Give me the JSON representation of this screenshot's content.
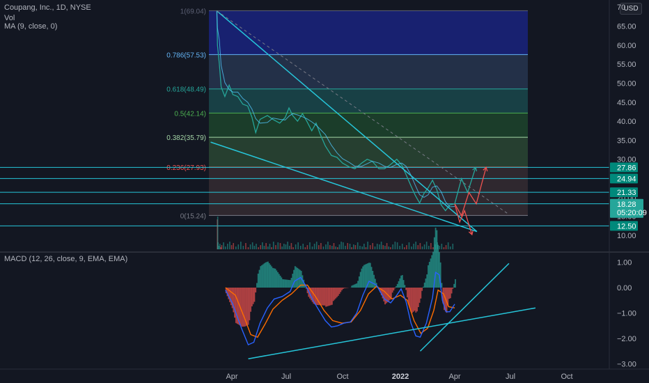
{
  "symbol_line": "Coupang, Inc., 1D, NYSE",
  "indicators": {
    "vol_label": "Vol",
    "ma_label": "MA (9, close, 0)",
    "macd_label": "MACD (12, 26, close, 9, EMA, EMA)"
  },
  "currency": "USD",
  "colors": {
    "background": "#131722",
    "trendline": "#26c6da",
    "up": "#26a69a",
    "down": "#ef5350",
    "macd_line": "#2962ff",
    "signal_line": "#ff6d00"
  },
  "chart_data": [
    {
      "type": "line",
      "title": "Coupang, Inc., 1D, NYSE",
      "y_axis": {
        "ticks": [
          "70",
          "65.00",
          "60.00",
          "55.00",
          "50.00",
          "45.00",
          "40.00",
          "35.00",
          "30.00",
          "25.00",
          "20.00",
          "15.00",
          "10.00"
        ],
        "range": [
          8,
          70
        ]
      },
      "x_axis": {
        "ticks": [
          "Apr",
          "Jul",
          "Oct",
          "2022",
          "Apr",
          "Jul",
          "Oct"
        ]
      },
      "fibonacci": [
        {
          "label": "1(69.04)",
          "value": 69.04,
          "color": "#5d6175"
        },
        {
          "label": "0.786(57.53)",
          "value": 57.53,
          "color": "#64b5f6"
        },
        {
          "label": "0.618(48.49)",
          "value": 48.49,
          "color": "#26a69a"
        },
        {
          "label": "0.5(42.14)",
          "value": 42.14,
          "color": "#4caf50"
        },
        {
          "label": "0.382(35.79)",
          "value": 35.79,
          "color": "#a5d6a7"
        },
        {
          "label": "0.236(27.93)",
          "value": 27.93,
          "color": "#ef5350"
        },
        {
          "label": "0(15.24)",
          "value": 15.24,
          "color": "#787b86"
        }
      ],
      "price_labels": [
        {
          "text": "27.86",
          "value": 27.86
        },
        {
          "text": "24.94",
          "value": 24.94
        },
        {
          "text": "21.33",
          "value": 21.33
        },
        {
          "text": "18.30",
          "value": 18.3
        },
        {
          "text": "12.50",
          "value": 12.5
        }
      ],
      "last_price": {
        "price": "18.28",
        "countdown": "05:20:09",
        "value": 18.28
      },
      "price_series": [
        [
          "2021-03-11",
          69.0
        ],
        [
          "2021-03-12",
          60.0
        ],
        [
          "2021-03-15",
          55.0
        ],
        [
          "2021-03-18",
          49.0
        ],
        [
          "2021-03-24",
          46.5
        ],
        [
          "2021-03-31",
          49.5
        ],
        [
          "2021-04-06",
          47.0
        ],
        [
          "2021-04-14",
          46.5
        ],
        [
          "2021-04-22",
          44.5
        ],
        [
          "2021-04-30",
          44.0
        ],
        [
          "2021-05-07",
          41.0
        ],
        [
          "2021-05-13",
          37.0
        ],
        [
          "2021-05-20",
          40.5
        ],
        [
          "2021-06-01",
          41.5
        ],
        [
          "2021-06-10",
          40.5
        ],
        [
          "2021-06-21",
          39.5
        ],
        [
          "2021-06-30",
          41.0
        ],
        [
          "2021-07-06",
          43.5
        ],
        [
          "2021-07-12",
          41.5
        ],
        [
          "2021-07-20",
          40.0
        ],
        [
          "2021-07-28",
          42.0
        ],
        [
          "2021-08-04",
          40.0
        ],
        [
          "2021-08-12",
          37.5
        ],
        [
          "2021-08-19",
          39.5
        ],
        [
          "2021-08-26",
          36.5
        ],
        [
          "2021-09-03",
          33.5
        ],
        [
          "2021-09-13",
          31.0
        ],
        [
          "2021-09-22",
          30.5
        ],
        [
          "2021-10-01",
          29.0
        ],
        [
          "2021-10-12",
          28.0
        ],
        [
          "2021-10-21",
          27.5
        ],
        [
          "2021-11-01",
          29.0
        ],
        [
          "2021-11-10",
          30.0
        ],
        [
          "2021-11-18",
          29.5
        ],
        [
          "2021-11-29",
          27.5
        ],
        [
          "2021-12-08",
          27.5
        ],
        [
          "2021-12-17",
          28.5
        ],
        [
          "2021-12-28",
          30.0
        ],
        [
          "2022-01-05",
          28.5
        ],
        [
          "2022-01-12",
          26.0
        ],
        [
          "2022-01-20",
          23.0
        ],
        [
          "2022-01-27",
          20.5
        ],
        [
          "2022-02-03",
          18.5
        ],
        [
          "2022-02-10",
          21.0
        ],
        [
          "2022-02-17",
          22.5
        ],
        [
          "2022-02-24",
          24.5
        ],
        [
          "2022-03-03",
          22.0
        ],
        [
          "2022-03-10",
          18.0
        ],
        [
          "2022-03-17",
          16.5
        ],
        [
          "2022-03-24",
          18.0
        ],
        [
          "2022-04-01",
          18.28
        ]
      ],
      "projections": [
        {
          "color": "#26a69a",
          "points": [
            [
              "2022-04-01",
              18.3
            ],
            [
              "2022-04-12",
              24.9
            ],
            [
              "2022-04-22",
              21.3
            ],
            [
              "2022-05-05",
              27.9
            ]
          ]
        },
        {
          "color": "#ef5350",
          "points": [
            [
              "2022-04-01",
              18.3
            ],
            [
              "2022-04-12",
              15.2
            ],
            [
              "2022-04-24",
              21.3
            ],
            [
              "2022-05-06",
              18.3
            ],
            [
              "2022-05-22",
              27.9
            ]
          ]
        },
        {
          "color": "#ef5350",
          "points": [
            [
              "2022-04-01",
              18.3
            ],
            [
              "2022-04-09",
              13.5
            ],
            [
              "2022-04-17",
              16.5
            ],
            [
              "2022-04-29",
              10.2
            ]
          ]
        }
      ],
      "trendlines": [
        {
          "color": "#26c6da",
          "points": [
            [
              "2021-03-11",
              69.0
            ],
            [
              "2022-05-07",
              11.0
            ]
          ]
        },
        {
          "color": "#26c6da",
          "points": [
            [
              "2021-03-01",
              34.5
            ],
            [
              "2022-05-07",
              11.0
            ]
          ]
        },
        {
          "color": "#787b86",
          "dashed": true,
          "points": [
            [
              "2021-03-11",
              69.0
            ],
            [
              "2022-06-28",
              15.5
            ]
          ]
        }
      ]
    },
    {
      "type": "line",
      "title": "MACD (12, 26, close, 9, EMA, EMA)",
      "y_axis": {
        "ticks": [
          "1.00",
          "0.00",
          "−1.00",
          "−2.00",
          "−3.00"
        ],
        "range": [
          -3.0,
          1.3
        ]
      },
      "macd_series": [
        [
          "2021-03-25",
          -0.1
        ],
        [
          "2021-04-05",
          -0.6
        ],
        [
          "2021-04-20",
          -1.6
        ],
        [
          "2021-05-01",
          -2.25
        ],
        [
          "2021-05-10",
          -2.15
        ],
        [
          "2021-05-20",
          -1.4
        ],
        [
          "2021-06-01",
          -0.8
        ],
        [
          "2021-06-12",
          -0.45
        ],
        [
          "2021-06-25",
          -0.35
        ],
        [
          "2021-07-08",
          -0.15
        ],
        [
          "2021-07-15",
          0.25
        ],
        [
          "2021-07-25",
          0.4
        ],
        [
          "2021-08-04",
          0.0
        ],
        [
          "2021-08-14",
          -0.5
        ],
        [
          "2021-08-24",
          -0.9
        ],
        [
          "2021-09-03",
          -1.3
        ],
        [
          "2021-09-13",
          -1.55
        ],
        [
          "2021-09-23",
          -1.5
        ],
        [
          "2021-10-03",
          -1.4
        ],
        [
          "2021-10-14",
          -1.35
        ],
        [
          "2021-10-24",
          -1.0
        ],
        [
          "2021-11-03",
          -0.3
        ],
        [
          "2021-11-13",
          0.25
        ],
        [
          "2021-11-25",
          0.1
        ],
        [
          "2021-12-08",
          -0.45
        ],
        [
          "2021-12-18",
          -0.6
        ],
        [
          "2021-12-28",
          -0.3
        ],
        [
          "2022-01-04",
          -0.05
        ],
        [
          "2022-01-12",
          -0.55
        ],
        [
          "2022-01-20",
          -1.4
        ],
        [
          "2022-01-28",
          -1.9
        ],
        [
          "2022-02-04",
          -1.95
        ],
        [
          "2022-02-14",
          -1.4
        ],
        [
          "2022-02-24",
          -0.4
        ],
        [
          "2022-03-01",
          0.6
        ],
        [
          "2022-03-07",
          0.5
        ],
        [
          "2022-03-12",
          -0.5
        ],
        [
          "2022-03-18",
          -0.95
        ],
        [
          "2022-03-24",
          -0.95
        ],
        [
          "2022-04-01",
          -0.65
        ]
      ],
      "signal_series": [
        [
          "2021-03-25",
          0.0
        ],
        [
          "2021-04-10",
          -0.3
        ],
        [
          "2021-04-25",
          -1.2
        ],
        [
          "2021-05-05",
          -1.85
        ],
        [
          "2021-05-16",
          -1.95
        ],
        [
          "2021-05-28",
          -1.45
        ],
        [
          "2021-06-10",
          -0.85
        ],
        [
          "2021-06-25",
          -0.5
        ],
        [
          "2021-07-10",
          -0.25
        ],
        [
          "2021-07-25",
          0.1
        ],
        [
          "2021-08-05",
          0.1
        ],
        [
          "2021-08-18",
          -0.35
        ],
        [
          "2021-09-01",
          -0.9
        ],
        [
          "2021-09-15",
          -1.3
        ],
        [
          "2021-09-30",
          -1.4
        ],
        [
          "2021-10-15",
          -1.35
        ],
        [
          "2021-10-30",
          -0.9
        ],
        [
          "2021-11-12",
          -0.25
        ],
        [
          "2021-11-25",
          0.05
        ],
        [
          "2021-12-08",
          -0.15
        ],
        [
          "2021-12-20",
          -0.45
        ],
        [
          "2022-01-03",
          -0.3
        ],
        [
          "2022-01-14",
          -0.5
        ],
        [
          "2022-01-25",
          -1.3
        ],
        [
          "2022-02-05",
          -1.8
        ],
        [
          "2022-02-16",
          -1.6
        ],
        [
          "2022-02-26",
          -0.9
        ],
        [
          "2022-03-05",
          -0.1
        ],
        [
          "2022-03-14",
          -0.25
        ],
        [
          "2022-03-22",
          -0.75
        ],
        [
          "2022-04-01",
          -0.8
        ]
      ],
      "trendlines": [
        {
          "color": "#26c6da",
          "points": [
            [
              "2021-05-01",
              -2.8
            ],
            [
              "2022-08-10",
              -0.8
            ]
          ]
        },
        {
          "color": "#26c6da",
          "points": [
            [
              "2022-02-04",
              -2.5
            ],
            [
              "2022-06-28",
              0.95
            ]
          ]
        }
      ]
    }
  ]
}
